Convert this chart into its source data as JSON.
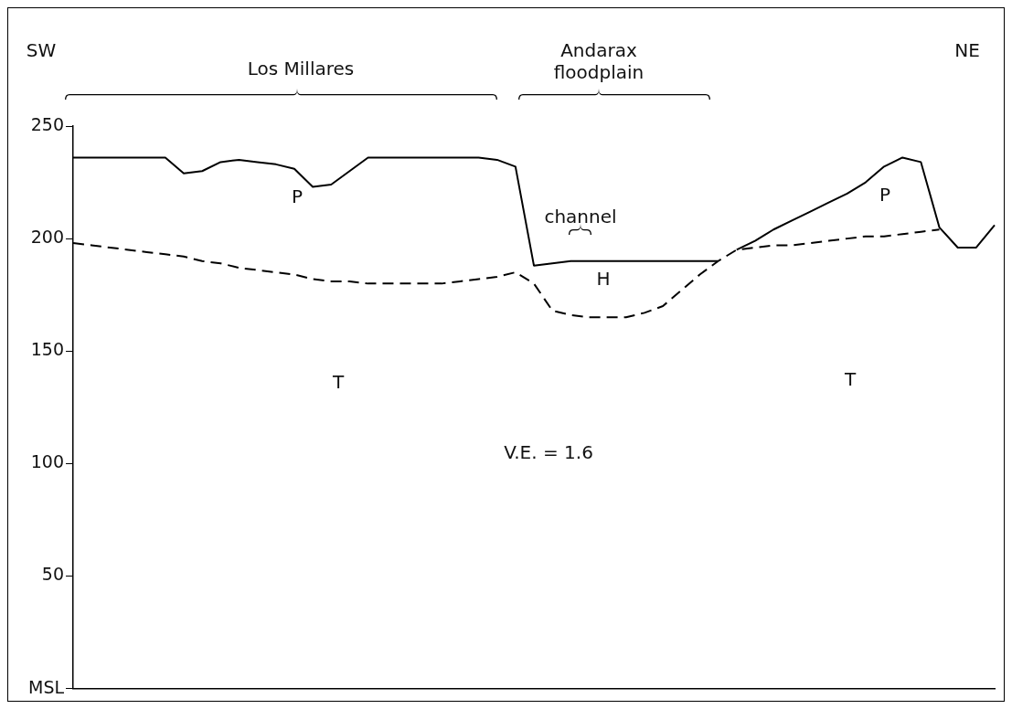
{
  "chart_data": {
    "type": "line",
    "ylim": [
      0,
      250
    ],
    "yticks": [
      {
        "value": 0,
        "label": "MSL"
      },
      50,
      100,
      150,
      200,
      250
    ],
    "categories": [
      null,
      null,
      null,
      null,
      null,
      null,
      null,
      null,
      null,
      null,
      null,
      null,
      null,
      null,
      null,
      null,
      null,
      null,
      null,
      null,
      null,
      null,
      null,
      null,
      null,
      null,
      null,
      null,
      null,
      null,
      null,
      null,
      null,
      null,
      null,
      null,
      null,
      null,
      null,
      null,
      null,
      null,
      null,
      null,
      null,
      null,
      null,
      null,
      null,
      null,
      null
    ],
    "tick_labels": "y",
    "marker": "none",
    "series": [
      {
        "color": "#000000",
        "line_style": "solid",
        "values": [
          236,
          236,
          236,
          236,
          236,
          236,
          229,
          230,
          234,
          235,
          234,
          233,
          231,
          223,
          224,
          230,
          236,
          236,
          236,
          236,
          236,
          236,
          236,
          235,
          232,
          188,
          189,
          190,
          190,
          190,
          190,
          190,
          190,
          190,
          190,
          190,
          null,
          null,
          null,
          null,
          null,
          null,
          null,
          null,
          null,
          null,
          null,
          null,
          null,
          null,
          null
        ]
      },
      {
        "color": "#000000",
        "line_style": "solid",
        "values": [
          null,
          null,
          null,
          null,
          null,
          null,
          null,
          null,
          null,
          null,
          null,
          null,
          null,
          null,
          null,
          null,
          null,
          null,
          null,
          null,
          null,
          null,
          null,
          null,
          null,
          null,
          null,
          null,
          null,
          null,
          null,
          null,
          null,
          null,
          null,
          null,
          195,
          199,
          204,
          208,
          212,
          216,
          220,
          225,
          232,
          236,
          234,
          205,
          196,
          196,
          206
        ]
      },
      {
        "color": "#000000",
        "line_style": "dashed",
        "values": [
          198,
          197,
          196,
          195,
          194,
          193,
          192,
          190,
          189,
          187,
          186,
          185,
          184,
          182,
          181,
          181,
          180,
          180,
          180,
          180,
          180,
          181,
          182,
          183,
          185,
          180,
          168,
          166,
          165,
          165,
          165,
          167,
          170,
          177,
          184,
          190,
          195,
          196,
          197,
          197,
          198,
          199,
          200,
          201,
          201,
          202,
          203,
          204,
          null,
          null,
          null
        ]
      }
    ],
    "annotations": [
      "SW",
      "Los Millares",
      "Andarax floodplain",
      "NE",
      "channel",
      "P",
      "H",
      "P",
      "T",
      "T",
      "V.E. = 1.6"
    ]
  }
}
